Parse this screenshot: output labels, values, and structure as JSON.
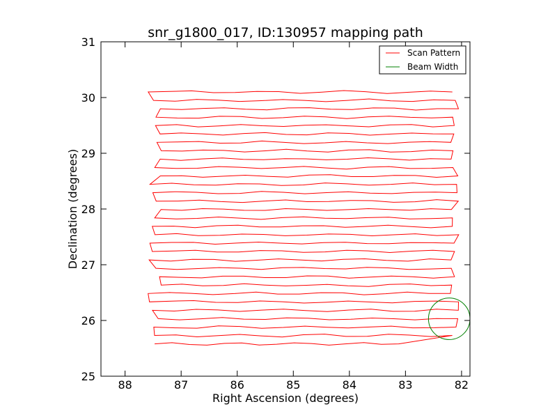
{
  "chart_data": {
    "type": "line",
    "title": "snr_g1800_017, ID:130957 mapping path",
    "xlabel": "Right Ascension (degrees)",
    "ylabel": "Declination (degrees)",
    "xlim": [
      88.43,
      81.85
    ],
    "ylim": [
      25,
      31
    ],
    "x_inverted": true,
    "xticks": [
      88,
      87,
      86,
      85,
      84,
      83,
      82
    ],
    "yticks": [
      25,
      26,
      27,
      28,
      29,
      30,
      31
    ],
    "grid": false,
    "legend": {
      "placement": "top-right",
      "entries": [
        "Scan Pattern",
        "Beam Width"
      ]
    },
    "series": [
      {
        "name": "Scan Pattern",
        "color": "#ff0000",
        "rows": {
          "count": 31,
          "dec_start": 25.58,
          "dec_end": 30.1,
          "ra_start": 87.45,
          "ra_end": 82.2,
          "last_row_ra_end": 83.12
        }
      },
      {
        "name": "Beam Width",
        "color": "#008000",
        "shape": "circle",
        "center": [
          82.22,
          26.03
        ],
        "radius_deg": 0.37
      }
    ]
  }
}
